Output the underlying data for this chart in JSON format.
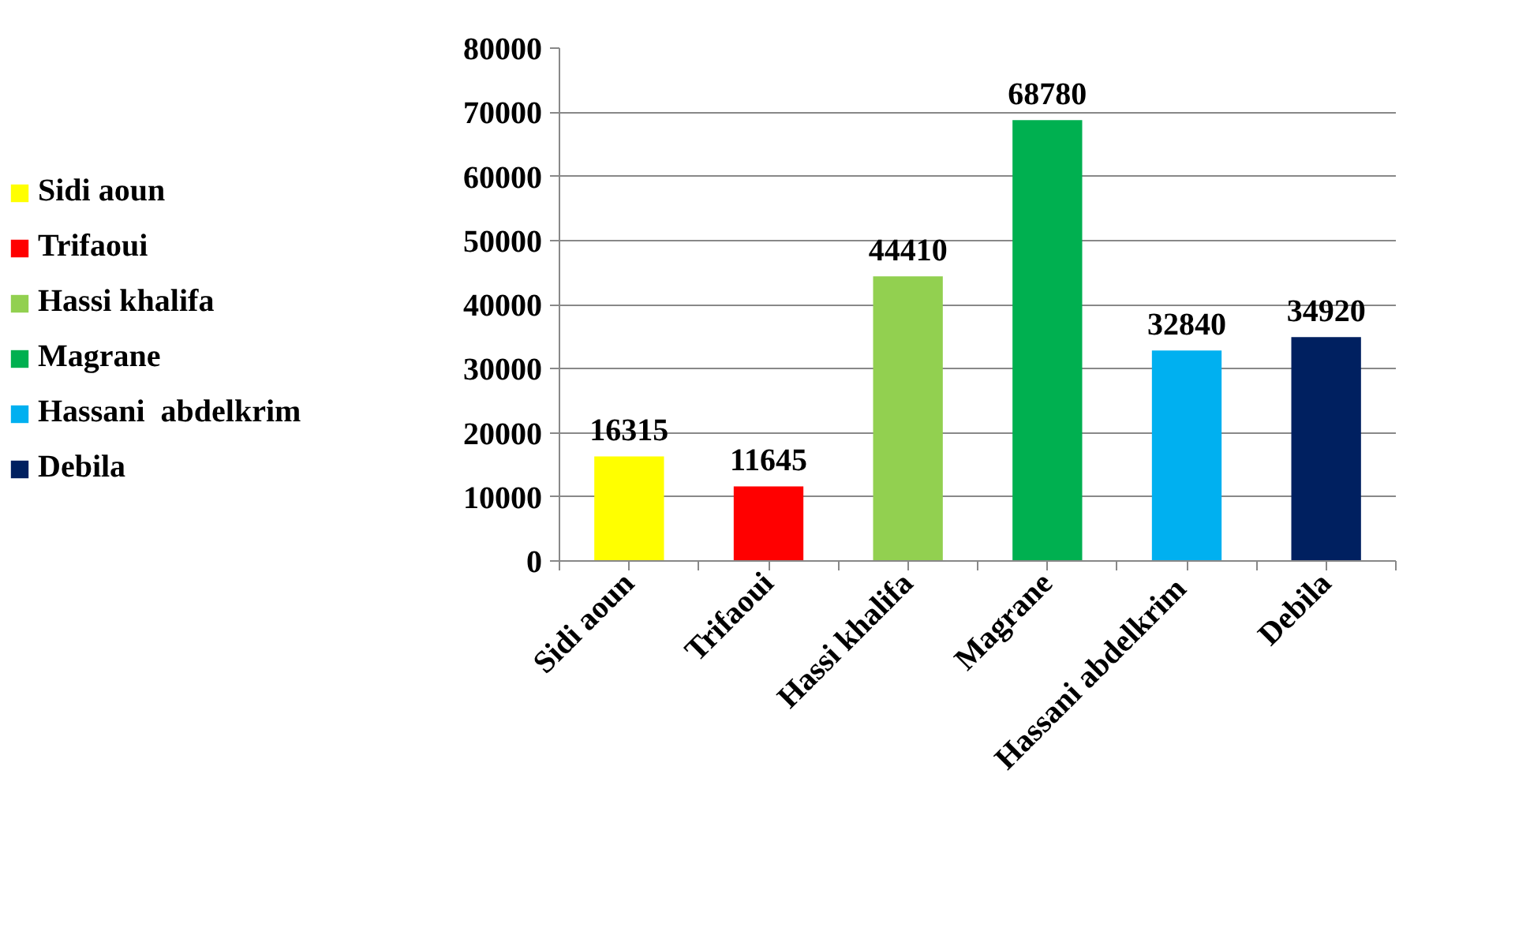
{
  "chart_data": {
    "type": "bar",
    "categories": [
      "Sidi aoun",
      "Trifaoui",
      "Hassi khalifa",
      "Magrane",
      "Hassani  abdelkrim",
      "Debila"
    ],
    "series": [
      {
        "name": "Sidi aoun",
        "color": "#ffff00",
        "values": [
          16315,
          null,
          null,
          null,
          null,
          null
        ]
      },
      {
        "name": "Trifaoui",
        "color": "#ff0000",
        "values": [
          null,
          11645,
          null,
          null,
          null,
          null
        ]
      },
      {
        "name": "Hassi khalifa",
        "color": "#92d050",
        "values": [
          null,
          null,
          44410,
          null,
          null,
          null
        ]
      },
      {
        "name": "Magrane",
        "color": "#00b050",
        "values": [
          null,
          null,
          null,
          68780,
          null,
          null
        ]
      },
      {
        "name": "Hassani  abdelkrim",
        "color": "#00b0f0",
        "values": [
          null,
          null,
          null,
          null,
          32840,
          null
        ]
      },
      {
        "name": "Debila",
        "color": "#002060",
        "values": [
          null,
          null,
          null,
          null,
          null,
          34920
        ]
      }
    ],
    "ylim": [
      0,
      80000
    ],
    "yticks": [
      0,
      10000,
      20000,
      30000,
      40000,
      50000,
      60000,
      70000,
      80000
    ],
    "grid": "y",
    "legend": "left",
    "data_labels": true
  }
}
